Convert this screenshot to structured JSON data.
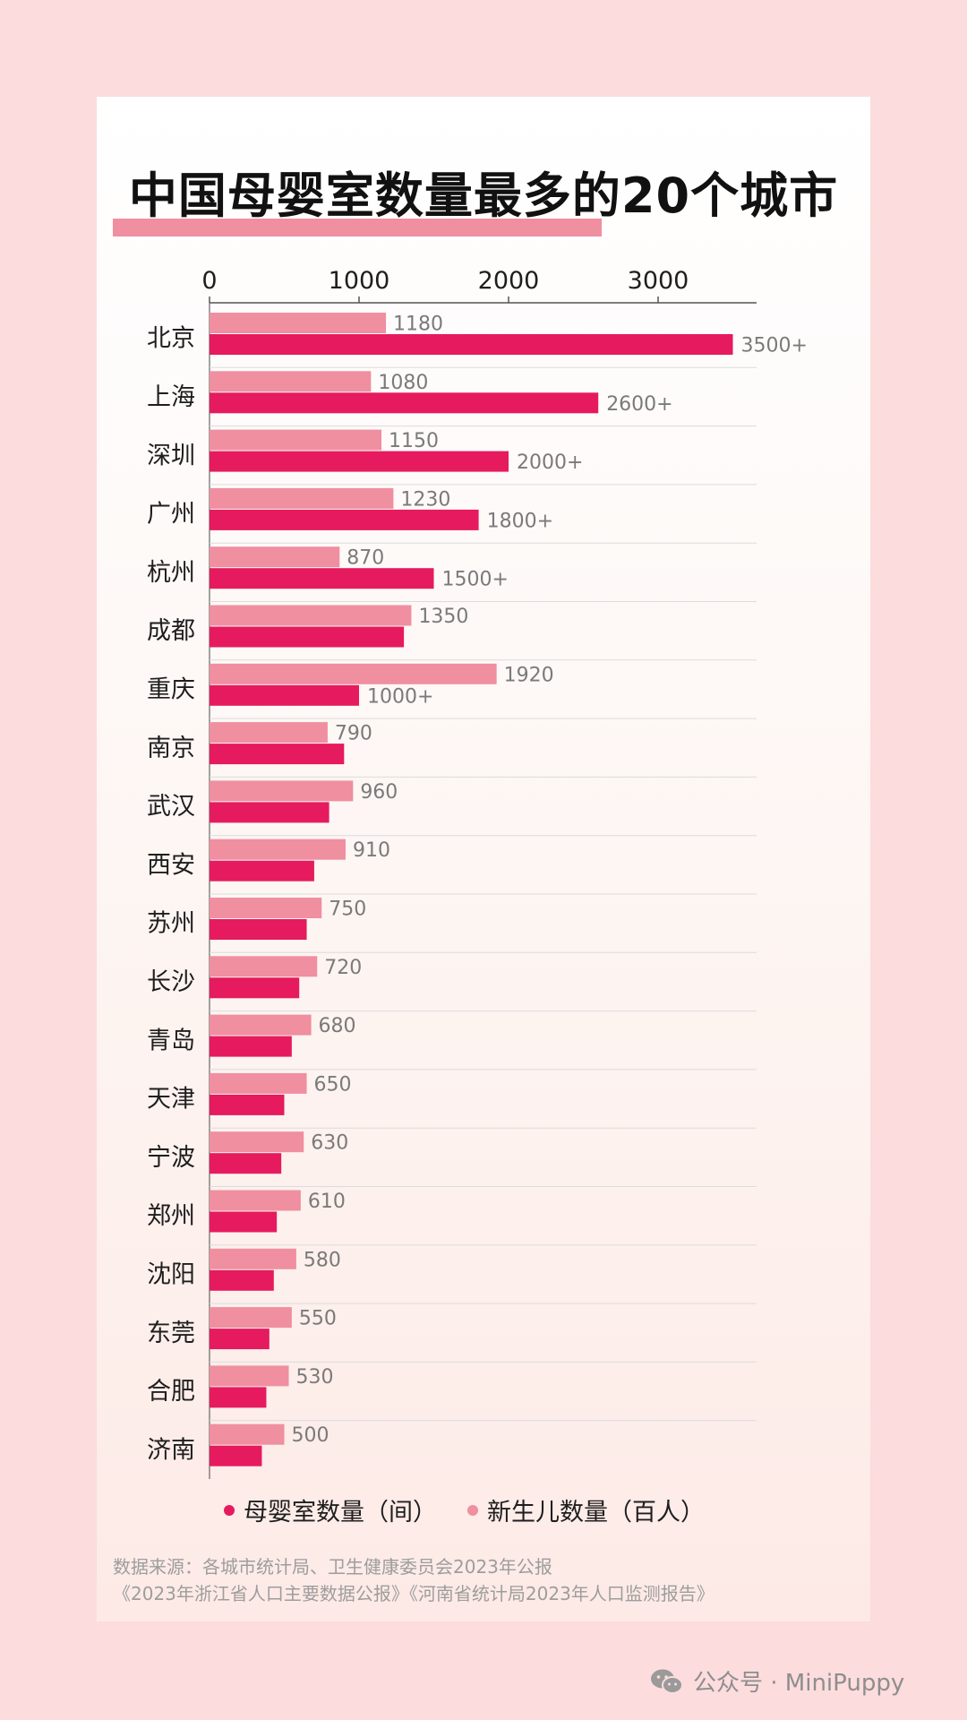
{
  "page": {
    "title": "中国母婴室数量最多的20个城市",
    "source_line1": "数据来源：各城市统计局、卫生健康委员会2023年公报",
    "source_line2": "《2023年浙江省人口主要数据公报》《河南省统计局2023年人口监测报告》",
    "watermark": "公众号 · MiniPuppy",
    "watermark_icon": "wechat-icon"
  },
  "chart_data": {
    "type": "bar",
    "orientation": "horizontal",
    "title": "中国母婴室数量最多的20个城市",
    "xlim": [
      0,
      3500
    ],
    "x_ticks": [
      0,
      1000,
      2000,
      3000
    ],
    "x_tick_labels": [
      "0",
      "1000",
      "2000",
      "3000"
    ],
    "axis_position": "top",
    "grid": "horizontal separators between categories",
    "legend_position": "bottom",
    "categories": [
      "北京",
      "上海",
      "深圳",
      "广州",
      "杭州",
      "成都",
      "重庆",
      "南京",
      "武汉",
      "西安",
      "苏州",
      "长沙",
      "青岛",
      "天津",
      "宁波",
      "郑州",
      "沈阳",
      "东莞",
      "合肥",
      "济南"
    ],
    "series": [
      {
        "name": "新生儿数量（百人）",
        "color": "#ef8fa0",
        "values": [
          1180,
          1080,
          1150,
          1230,
          870,
          1350,
          1920,
          790,
          960,
          910,
          750,
          720,
          680,
          650,
          630,
          610,
          580,
          550,
          530,
          500
        ],
        "labels": [
          "1180",
          "1080",
          "1150",
          "1230",
          "870",
          "1350",
          "1920",
          "790",
          "960",
          "910",
          "750",
          "720",
          "680",
          "650",
          "630",
          "610",
          "580",
          "550",
          "530",
          "500"
        ]
      },
      {
        "name": "母婴室数量（间）",
        "color": "#e61a5e",
        "values": [
          3500,
          2600,
          2000,
          1800,
          1500,
          1300,
          1000,
          900,
          800,
          700,
          650,
          600,
          550,
          500,
          480,
          450,
          430,
          400,
          380,
          350
        ],
        "labels": [
          "3500+",
          "2600+",
          "2000+",
          "1800+",
          "1500+",
          "",
          "1000+",
          "",
          "",
          "",
          "",
          "",
          "",
          "",
          "",
          "",
          "",
          "",
          "",
          ""
        ]
      }
    ],
    "legend_order": [
      1,
      0
    ]
  }
}
